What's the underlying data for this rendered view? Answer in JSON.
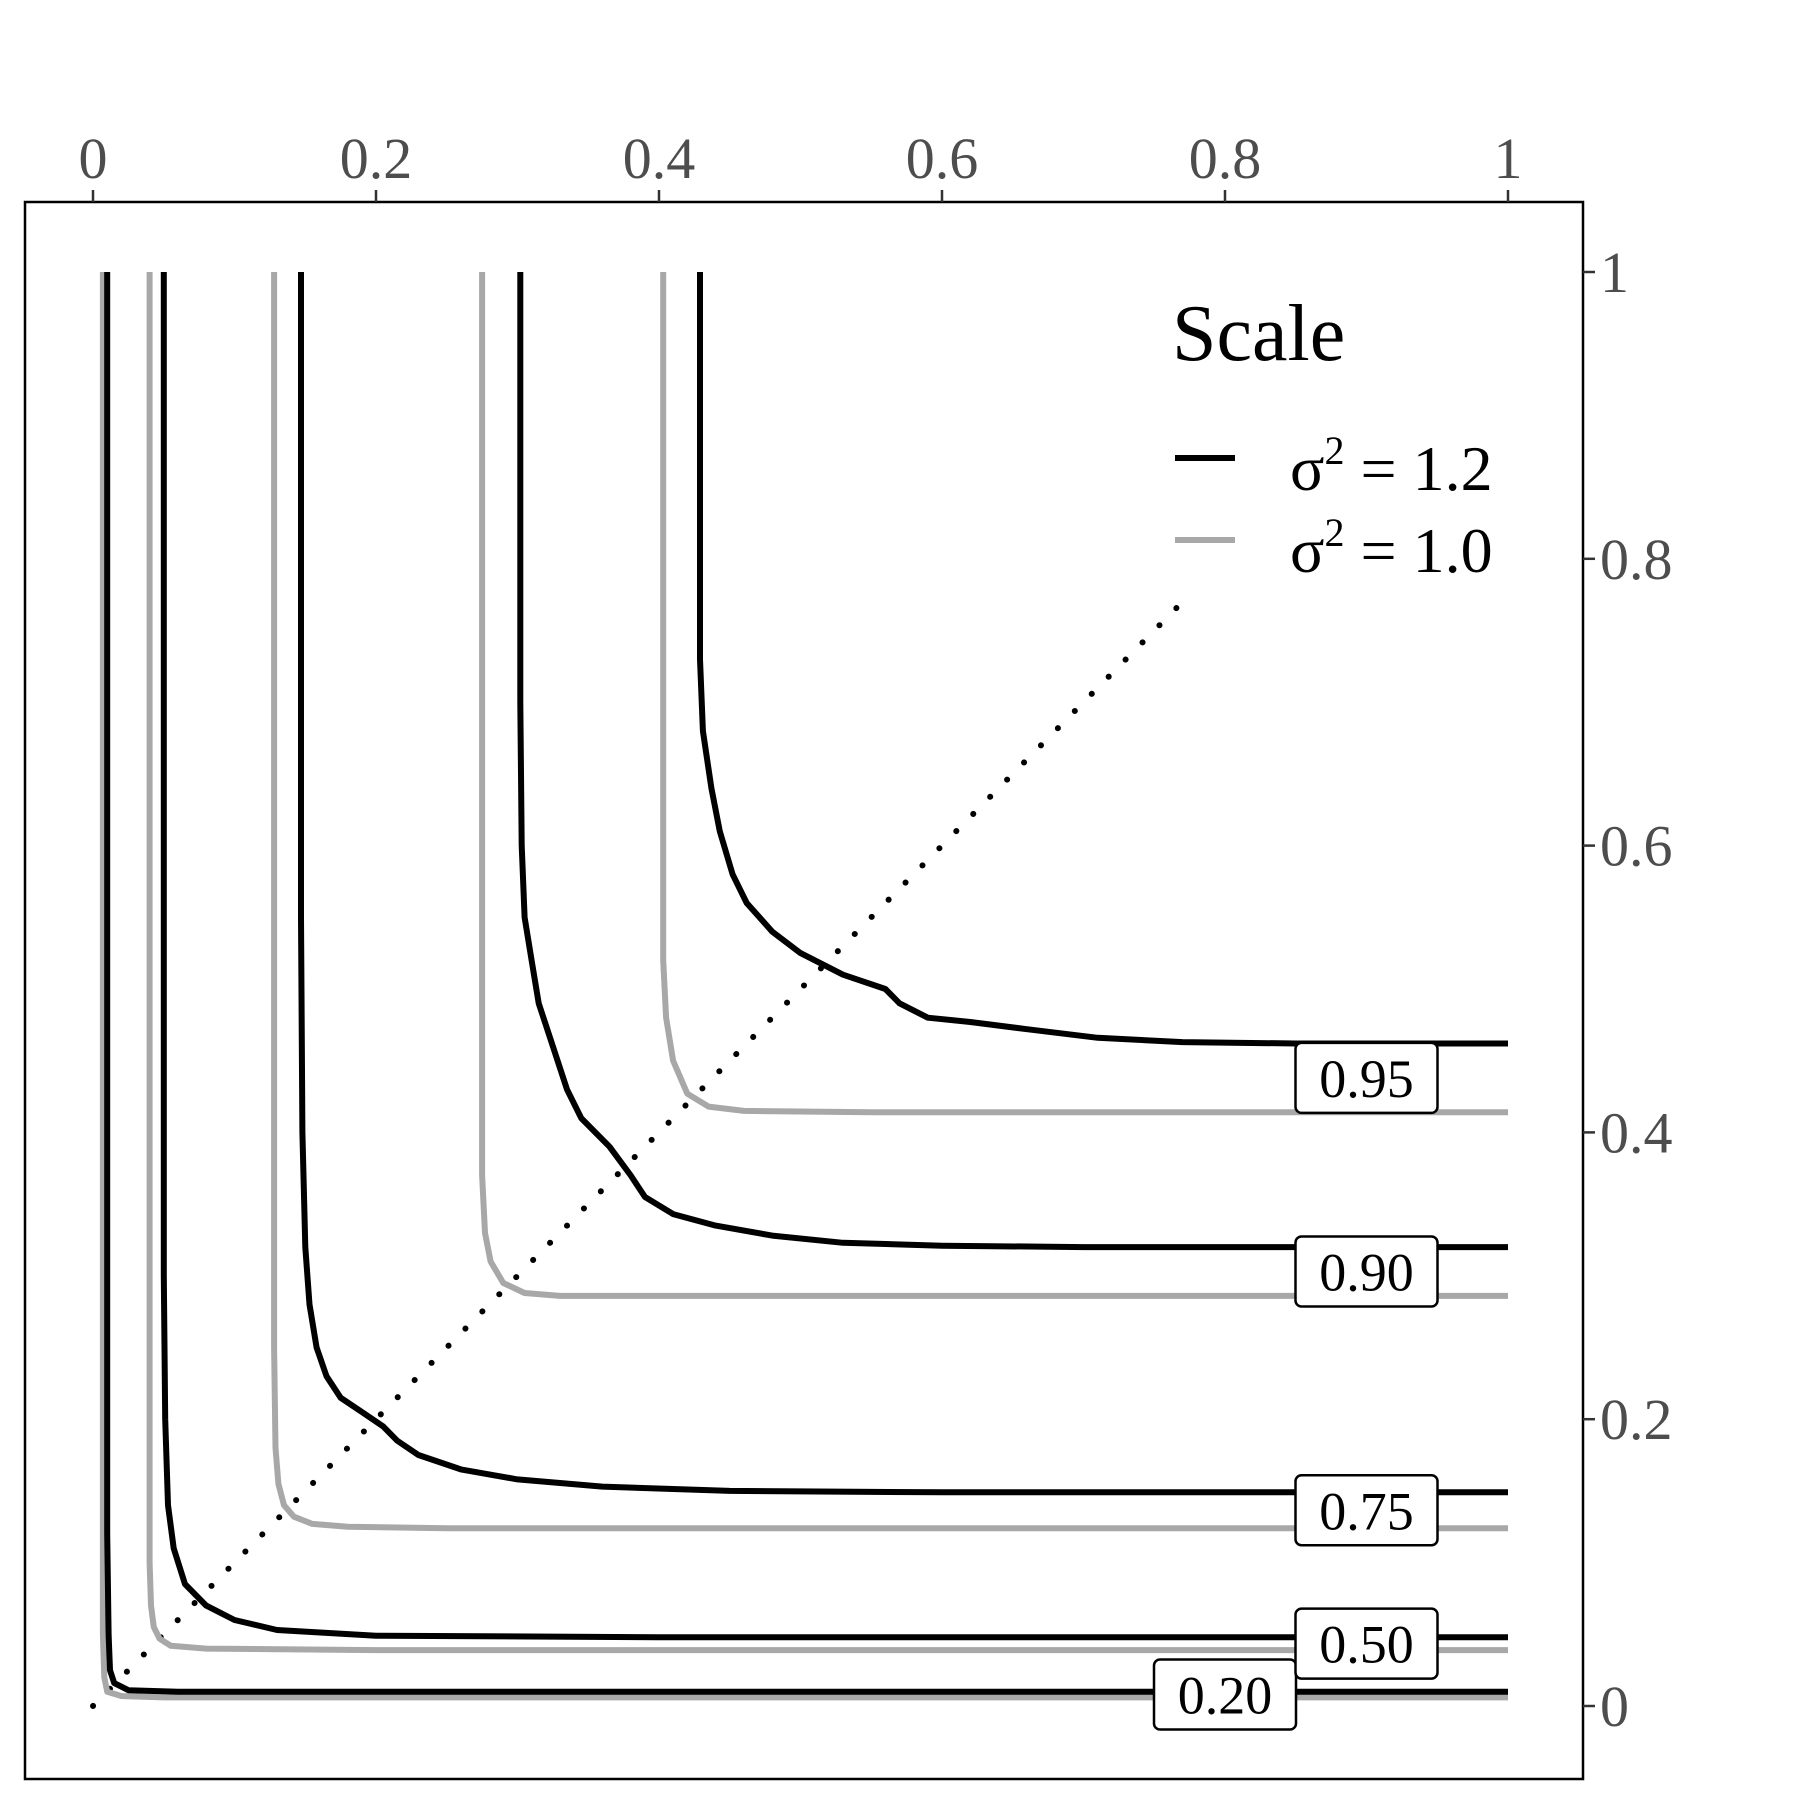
{
  "chart_data": {
    "type": "line",
    "x_ticks": [
      "0",
      "0.2",
      "0.4",
      "0.6",
      "0.8",
      "1"
    ],
    "y_ticks": [
      "0",
      "0.2",
      "0.4",
      "0.6",
      "0.8",
      "1"
    ],
    "xlim": [
      0,
      1
    ],
    "ylim": [
      0,
      1
    ],
    "x_axis_position": "top",
    "y_axis_position": "right",
    "grid": false,
    "legend": {
      "title": "Scale",
      "placement": "top-right",
      "entries": [
        {
          "symbol": "σ",
          "superscript": "2",
          "text": " = 1.2",
          "color": "#000000"
        },
        {
          "symbol": "σ",
          "superscript": "2",
          "text": " = 1.0",
          "color": "#a8a8a8"
        }
      ]
    },
    "contour_labels": [
      "0.20",
      "0.50",
      "0.75",
      "0.90",
      "0.95"
    ],
    "reference_line": {
      "style": "dotted",
      "x": [
        0,
        0.77
      ],
      "y": [
        0,
        0.77
      ]
    },
    "series": [
      {
        "group": "sigma2_1.2",
        "level": "0.20",
        "color": "#000000",
        "points": [
          [
            0.01,
            1
          ],
          [
            0.01,
            0.12
          ],
          [
            0.011,
            0.05
          ],
          [
            0.012,
            0.025
          ],
          [
            0.015,
            0.016
          ],
          [
            0.025,
            0.011
          ],
          [
            0.06,
            0.01
          ],
          [
            1,
            0.01
          ]
        ]
      },
      {
        "group": "sigma2_1.0",
        "level": "0.20",
        "color": "#a8a8a8",
        "points": [
          [
            0.007,
            1
          ],
          [
            0.007,
            0.05
          ],
          [
            0.008,
            0.02
          ],
          [
            0.01,
            0.01
          ],
          [
            0.02,
            0.007
          ],
          [
            0.05,
            0.006
          ],
          [
            1,
            0.006
          ]
        ]
      },
      {
        "group": "sigma2_1.2",
        "level": "0.50",
        "color": "#000000",
        "points": [
          [
            0.05,
            1
          ],
          [
            0.05,
            0.3
          ],
          [
            0.051,
            0.2
          ],
          [
            0.053,
            0.14
          ],
          [
            0.057,
            0.11
          ],
          [
            0.065,
            0.085
          ],
          [
            0.08,
            0.07
          ],
          [
            0.1,
            0.06
          ],
          [
            0.13,
            0.053
          ],
          [
            0.2,
            0.049
          ],
          [
            0.4,
            0.048
          ],
          [
            1,
            0.048
          ]
        ]
      },
      {
        "group": "sigma2_1.0",
        "level": "0.50",
        "color": "#a8a8a8",
        "points": [
          [
            0.04,
            1
          ],
          [
            0.04,
            0.1
          ],
          [
            0.041,
            0.07
          ],
          [
            0.043,
            0.055
          ],
          [
            0.047,
            0.047
          ],
          [
            0.055,
            0.042
          ],
          [
            0.08,
            0.04
          ],
          [
            0.2,
            0.039
          ],
          [
            1,
            0.039
          ]
        ]
      },
      {
        "group": "sigma2_1.2",
        "level": "0.75",
        "color": "#000000",
        "points": [
          [
            0.147,
            1
          ],
          [
            0.147,
            0.55
          ],
          [
            0.148,
            0.4
          ],
          [
            0.15,
            0.32
          ],
          [
            0.153,
            0.28
          ],
          [
            0.158,
            0.25
          ],
          [
            0.165,
            0.23
          ],
          [
            0.175,
            0.215
          ],
          [
            0.19,
            0.205
          ],
          [
            0.205,
            0.195
          ],
          [
            0.215,
            0.185
          ],
          [
            0.23,
            0.175
          ],
          [
            0.26,
            0.165
          ],
          [
            0.3,
            0.158
          ],
          [
            0.36,
            0.153
          ],
          [
            0.45,
            0.15
          ],
          [
            0.6,
            0.149
          ],
          [
            1,
            0.149
          ]
        ]
      },
      {
        "group": "sigma2_1.0",
        "level": "0.75",
        "color": "#a8a8a8",
        "points": [
          [
            0.128,
            1
          ],
          [
            0.128,
            0.25
          ],
          [
            0.129,
            0.18
          ],
          [
            0.131,
            0.155
          ],
          [
            0.135,
            0.14
          ],
          [
            0.142,
            0.132
          ],
          [
            0.155,
            0.127
          ],
          [
            0.18,
            0.125
          ],
          [
            0.25,
            0.124
          ],
          [
            1,
            0.124
          ]
        ]
      },
      {
        "group": "sigma2_1.2",
        "level": "0.90",
        "color": "#000000",
        "points": [
          [
            0.302,
            1
          ],
          [
            0.302,
            0.7
          ],
          [
            0.303,
            0.6
          ],
          [
            0.305,
            0.55
          ],
          [
            0.31,
            0.52
          ],
          [
            0.315,
            0.49
          ],
          [
            0.325,
            0.46
          ],
          [
            0.335,
            0.43
          ],
          [
            0.345,
            0.41
          ],
          [
            0.365,
            0.39
          ],
          [
            0.38,
            0.37
          ],
          [
            0.39,
            0.355
          ],
          [
            0.41,
            0.343
          ],
          [
            0.44,
            0.335
          ],
          [
            0.48,
            0.328
          ],
          [
            0.53,
            0.323
          ],
          [
            0.6,
            0.321
          ],
          [
            0.7,
            0.32
          ],
          [
            1,
            0.32
          ]
        ]
      },
      {
        "group": "sigma2_1.0",
        "level": "0.90",
        "color": "#a8a8a8",
        "points": [
          [
            0.275,
            1
          ],
          [
            0.275,
            0.37
          ],
          [
            0.277,
            0.33
          ],
          [
            0.281,
            0.31
          ],
          [
            0.29,
            0.295
          ],
          [
            0.305,
            0.288
          ],
          [
            0.33,
            0.286
          ],
          [
            0.4,
            0.286
          ],
          [
            1,
            0.286
          ]
        ]
      },
      {
        "group": "sigma2_1.2",
        "level": "0.95",
        "color": "#000000",
        "points": [
          [
            0.429,
            1
          ],
          [
            0.429,
            0.73
          ],
          [
            0.431,
            0.68
          ],
          [
            0.437,
            0.64
          ],
          [
            0.443,
            0.61
          ],
          [
            0.452,
            0.58
          ],
          [
            0.462,
            0.56
          ],
          [
            0.48,
            0.54
          ],
          [
            0.5,
            0.525
          ],
          [
            0.53,
            0.51
          ],
          [
            0.56,
            0.5
          ],
          [
            0.57,
            0.49
          ],
          [
            0.59,
            0.48
          ],
          [
            0.62,
            0.477
          ],
          [
            0.66,
            0.472
          ],
          [
            0.71,
            0.466
          ],
          [
            0.77,
            0.463
          ],
          [
            0.85,
            0.462
          ],
          [
            1,
            0.462
          ]
        ]
      },
      {
        "group": "sigma2_1.0",
        "level": "0.95",
        "color": "#a8a8a8",
        "points": [
          [
            0.403,
            1
          ],
          [
            0.403,
            0.52
          ],
          [
            0.405,
            0.48
          ],
          [
            0.41,
            0.45
          ],
          [
            0.42,
            0.427
          ],
          [
            0.435,
            0.418
          ],
          [
            0.46,
            0.415
          ],
          [
            0.55,
            0.414
          ],
          [
            1,
            0.414
          ]
        ]
      }
    ]
  }
}
